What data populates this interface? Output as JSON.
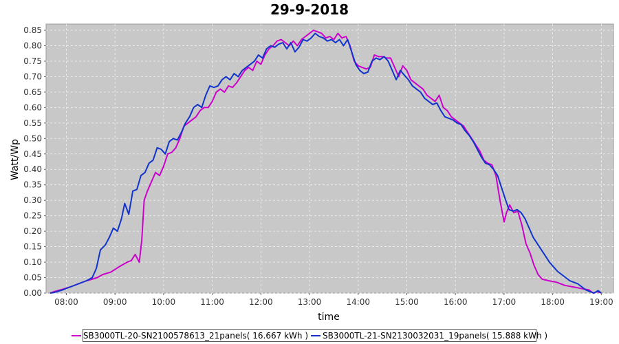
{
  "chart_data": {
    "type": "line",
    "title": "29-9-2018",
    "xlabel": "time",
    "ylabel": "Watt/Wp",
    "xlim": [
      "07:35",
      "19:15"
    ],
    "ylim": [
      0,
      0.87
    ],
    "x_ticks": [
      "08:00",
      "09:00",
      "10:00",
      "11:00",
      "12:00",
      "13:00",
      "14:00",
      "15:00",
      "16:00",
      "17:00",
      "18:00",
      "19:00"
    ],
    "y_ticks": [
      "0.00",
      "0.05",
      "0.10",
      "0.15",
      "0.20",
      "0.25",
      "0.30",
      "0.35",
      "0.40",
      "0.45",
      "0.50",
      "0.55",
      "0.60",
      "0.65",
      "0.70",
      "0.75",
      "0.80",
      "0.85"
    ],
    "grid": true,
    "legend_position": "bottom",
    "series": [
      {
        "name": "SB3000TL-20-SN2100578613_21panels( 16.667 kWh )",
        "color": "#cc00cc",
        "points": [
          [
            "07:40",
            0.0
          ],
          [
            "07:45",
            0.005
          ],
          [
            "07:55",
            0.012
          ],
          [
            "08:05",
            0.02
          ],
          [
            "08:15",
            0.03
          ],
          [
            "08:25",
            0.04
          ],
          [
            "08:32",
            0.045
          ],
          [
            "08:38",
            0.05
          ],
          [
            "08:45",
            0.06
          ],
          [
            "08:55",
            0.068
          ],
          [
            "09:05",
            0.085
          ],
          [
            "09:15",
            0.1
          ],
          [
            "09:20",
            0.105
          ],
          [
            "09:25",
            0.125
          ],
          [
            "09:30",
            0.1
          ],
          [
            "09:33",
            0.17
          ],
          [
            "09:36",
            0.3
          ],
          [
            "09:40",
            0.33
          ],
          [
            "09:45",
            0.36
          ],
          [
            "09:50",
            0.39
          ],
          [
            "09:55",
            0.38
          ],
          [
            "10:00",
            0.41
          ],
          [
            "10:05",
            0.45
          ],
          [
            "10:10",
            0.455
          ],
          [
            "10:15",
            0.47
          ],
          [
            "10:20",
            0.5
          ],
          [
            "10:25",
            0.54
          ],
          [
            "10:30",
            0.55
          ],
          [
            "10:35",
            0.56
          ],
          [
            "10:40",
            0.57
          ],
          [
            "10:45",
            0.59
          ],
          [
            "10:50",
            0.6
          ],
          [
            "10:55",
            0.6
          ],
          [
            "11:00",
            0.62
          ],
          [
            "11:05",
            0.65
          ],
          [
            "11:10",
            0.66
          ],
          [
            "11:15",
            0.65
          ],
          [
            "11:20",
            0.67
          ],
          [
            "11:25",
            0.665
          ],
          [
            "11:30",
            0.68
          ],
          [
            "11:35",
            0.7
          ],
          [
            "11:40",
            0.72
          ],
          [
            "11:45",
            0.73
          ],
          [
            "11:50",
            0.72
          ],
          [
            "11:55",
            0.75
          ],
          [
            "12:00",
            0.74
          ],
          [
            "12:05",
            0.77
          ],
          [
            "12:10",
            0.79
          ],
          [
            "12:15",
            0.8
          ],
          [
            "12:20",
            0.815
          ],
          [
            "12:25",
            0.82
          ],
          [
            "12:30",
            0.81
          ],
          [
            "12:35",
            0.8
          ],
          [
            "12:40",
            0.815
          ],
          [
            "12:45",
            0.8
          ],
          [
            "12:50",
            0.82
          ],
          [
            "12:55",
            0.83
          ],
          [
            "13:00",
            0.84
          ],
          [
            "13:05",
            0.85
          ],
          [
            "13:10",
            0.845
          ],
          [
            "13:15",
            0.84
          ],
          [
            "13:20",
            0.825
          ],
          [
            "13:25",
            0.83
          ],
          [
            "13:30",
            0.82
          ],
          [
            "13:35",
            0.84
          ],
          [
            "13:40",
            0.825
          ],
          [
            "13:45",
            0.83
          ],
          [
            "13:50",
            0.8
          ],
          [
            "13:55",
            0.75
          ],
          [
            "14:00",
            0.735
          ],
          [
            "14:05",
            0.73
          ],
          [
            "14:10",
            0.725
          ],
          [
            "14:15",
            0.73
          ],
          [
            "14:20",
            0.77
          ],
          [
            "14:25",
            0.765
          ],
          [
            "14:30",
            0.765
          ],
          [
            "14:35",
            0.76
          ],
          [
            "14:40",
            0.76
          ],
          [
            "14:45",
            0.73
          ],
          [
            "14:50",
            0.7
          ],
          [
            "14:55",
            0.735
          ],
          [
            "15:00",
            0.72
          ],
          [
            "15:05",
            0.69
          ],
          [
            "15:10",
            0.68
          ],
          [
            "15:15",
            0.67
          ],
          [
            "15:20",
            0.66
          ],
          [
            "15:25",
            0.64
          ],
          [
            "15:30",
            0.63
          ],
          [
            "15:35",
            0.62
          ],
          [
            "15:40",
            0.64
          ],
          [
            "15:45",
            0.6
          ],
          [
            "15:50",
            0.59
          ],
          [
            "15:55",
            0.57
          ],
          [
            "16:00",
            0.56
          ],
          [
            "16:05",
            0.55
          ],
          [
            "16:10",
            0.54
          ],
          [
            "16:15",
            0.52
          ],
          [
            "16:20",
            0.5
          ],
          [
            "16:25",
            0.48
          ],
          [
            "16:30",
            0.46
          ],
          [
            "16:35",
            0.43
          ],
          [
            "16:40",
            0.42
          ],
          [
            "16:45",
            0.415
          ],
          [
            "16:50",
            0.38
          ],
          [
            "16:55",
            0.3
          ],
          [
            "17:00",
            0.23
          ],
          [
            "17:03",
            0.26
          ],
          [
            "17:07",
            0.285
          ],
          [
            "17:12",
            0.26
          ],
          [
            "17:17",
            0.265
          ],
          [
            "17:22",
            0.22
          ],
          [
            "17:27",
            0.16
          ],
          [
            "17:32",
            0.13
          ],
          [
            "17:37",
            0.09
          ],
          [
            "17:42",
            0.06
          ],
          [
            "17:47",
            0.045
          ],
          [
            "17:55",
            0.04
          ],
          [
            "18:05",
            0.035
          ],
          [
            "18:15",
            0.025
          ],
          [
            "18:25",
            0.02
          ],
          [
            "18:35",
            0.015
          ],
          [
            "18:45",
            0.01
          ],
          [
            "18:50",
            0.0
          ],
          [
            "18:55",
            0.005
          ],
          [
            "19:00",
            0.0
          ]
        ]
      },
      {
        "name": "SB3000TL-21-SN2130032031_19panels( 15.888 kWh )",
        "color": "#1033cc",
        "points": [
          [
            "07:40",
            0.0
          ],
          [
            "07:45",
            0.002
          ],
          [
            "07:55",
            0.01
          ],
          [
            "08:05",
            0.02
          ],
          [
            "08:15",
            0.03
          ],
          [
            "08:25",
            0.04
          ],
          [
            "08:32",
            0.05
          ],
          [
            "08:37",
            0.08
          ],
          [
            "08:42",
            0.14
          ],
          [
            "08:48",
            0.155
          ],
          [
            "08:53",
            0.18
          ],
          [
            "08:58",
            0.21
          ],
          [
            "09:03",
            0.2
          ],
          [
            "09:08",
            0.24
          ],
          [
            "09:12",
            0.29
          ],
          [
            "09:17",
            0.255
          ],
          [
            "09:22",
            0.33
          ],
          [
            "09:27",
            0.335
          ],
          [
            "09:32",
            0.38
          ],
          [
            "09:37",
            0.39
          ],
          [
            "09:42",
            0.42
          ],
          [
            "09:47",
            0.43
          ],
          [
            "09:52",
            0.47
          ],
          [
            "09:57",
            0.465
          ],
          [
            "10:02",
            0.45
          ],
          [
            "10:07",
            0.49
          ],
          [
            "10:12",
            0.5
          ],
          [
            "10:17",
            0.495
          ],
          [
            "10:22",
            0.52
          ],
          [
            "10:27",
            0.55
          ],
          [
            "10:32",
            0.57
          ],
          [
            "10:37",
            0.6
          ],
          [
            "10:42",
            0.61
          ],
          [
            "10:47",
            0.6
          ],
          [
            "10:52",
            0.64
          ],
          [
            "10:57",
            0.67
          ],
          [
            "11:02",
            0.665
          ],
          [
            "11:07",
            0.67
          ],
          [
            "11:12",
            0.69
          ],
          [
            "11:17",
            0.7
          ],
          [
            "11:22",
            0.69
          ],
          [
            "11:27",
            0.71
          ],
          [
            "11:32",
            0.7
          ],
          [
            "11:37",
            0.72
          ],
          [
            "11:42",
            0.73
          ],
          [
            "11:47",
            0.74
          ],
          [
            "11:52",
            0.75
          ],
          [
            "11:57",
            0.77
          ],
          [
            "12:02",
            0.76
          ],
          [
            "12:07",
            0.79
          ],
          [
            "12:12",
            0.8
          ],
          [
            "12:17",
            0.795
          ],
          [
            "12:22",
            0.805
          ],
          [
            "12:27",
            0.81
          ],
          [
            "12:32",
            0.79
          ],
          [
            "12:37",
            0.81
          ],
          [
            "12:42",
            0.78
          ],
          [
            "12:47",
            0.795
          ],
          [
            "12:52",
            0.82
          ],
          [
            "12:57",
            0.815
          ],
          [
            "13:02",
            0.825
          ],
          [
            "13:07",
            0.84
          ],
          [
            "13:12",
            0.83
          ],
          [
            "13:17",
            0.825
          ],
          [
            "13:22",
            0.815
          ],
          [
            "13:27",
            0.82
          ],
          [
            "13:32",
            0.81
          ],
          [
            "13:37",
            0.82
          ],
          [
            "13:42",
            0.8
          ],
          [
            "13:47",
            0.82
          ],
          [
            "13:52",
            0.78
          ],
          [
            "13:57",
            0.74
          ],
          [
            "14:02",
            0.72
          ],
          [
            "14:07",
            0.71
          ],
          [
            "14:12",
            0.715
          ],
          [
            "14:17",
            0.75
          ],
          [
            "14:22",
            0.76
          ],
          [
            "14:27",
            0.755
          ],
          [
            "14:32",
            0.765
          ],
          [
            "14:37",
            0.75
          ],
          [
            "14:42",
            0.72
          ],
          [
            "14:47",
            0.69
          ],
          [
            "14:52",
            0.72
          ],
          [
            "14:57",
            0.705
          ],
          [
            "15:02",
            0.69
          ],
          [
            "15:07",
            0.67
          ],
          [
            "15:12",
            0.66
          ],
          [
            "15:17",
            0.65
          ],
          [
            "15:22",
            0.63
          ],
          [
            "15:27",
            0.62
          ],
          [
            "15:32",
            0.61
          ],
          [
            "15:37",
            0.615
          ],
          [
            "15:42",
            0.59
          ],
          [
            "15:47",
            0.57
          ],
          [
            "15:52",
            0.565
          ],
          [
            "15:57",
            0.56
          ],
          [
            "16:02",
            0.55
          ],
          [
            "16:07",
            0.545
          ],
          [
            "16:12",
            0.525
          ],
          [
            "16:17",
            0.51
          ],
          [
            "16:22",
            0.49
          ],
          [
            "16:27",
            0.465
          ],
          [
            "16:32",
            0.44
          ],
          [
            "16:37",
            0.42
          ],
          [
            "16:42",
            0.415
          ],
          [
            "16:47",
            0.4
          ],
          [
            "16:52",
            0.38
          ],
          [
            "16:57",
            0.34
          ],
          [
            "17:02",
            0.3
          ],
          [
            "17:06",
            0.27
          ],
          [
            "17:11",
            0.265
          ],
          [
            "17:16",
            0.27
          ],
          [
            "17:21",
            0.26
          ],
          [
            "17:26",
            0.24
          ],
          [
            "17:31",
            0.21
          ],
          [
            "17:36",
            0.18
          ],
          [
            "17:41",
            0.16
          ],
          [
            "17:46",
            0.14
          ],
          [
            "17:51",
            0.12
          ],
          [
            "17:56",
            0.1
          ],
          [
            "18:01",
            0.085
          ],
          [
            "18:06",
            0.07
          ],
          [
            "18:11",
            0.06
          ],
          [
            "18:16",
            0.05
          ],
          [
            "18:21",
            0.04
          ],
          [
            "18:26",
            0.035
          ],
          [
            "18:31",
            0.03
          ],
          [
            "18:36",
            0.02
          ],
          [
            "18:41",
            0.01
          ],
          [
            "18:46",
            0.005
          ],
          [
            "18:51",
            0.0
          ],
          [
            "18:56",
            0.008
          ],
          [
            "19:00",
            0.0
          ]
        ]
      }
    ]
  }
}
